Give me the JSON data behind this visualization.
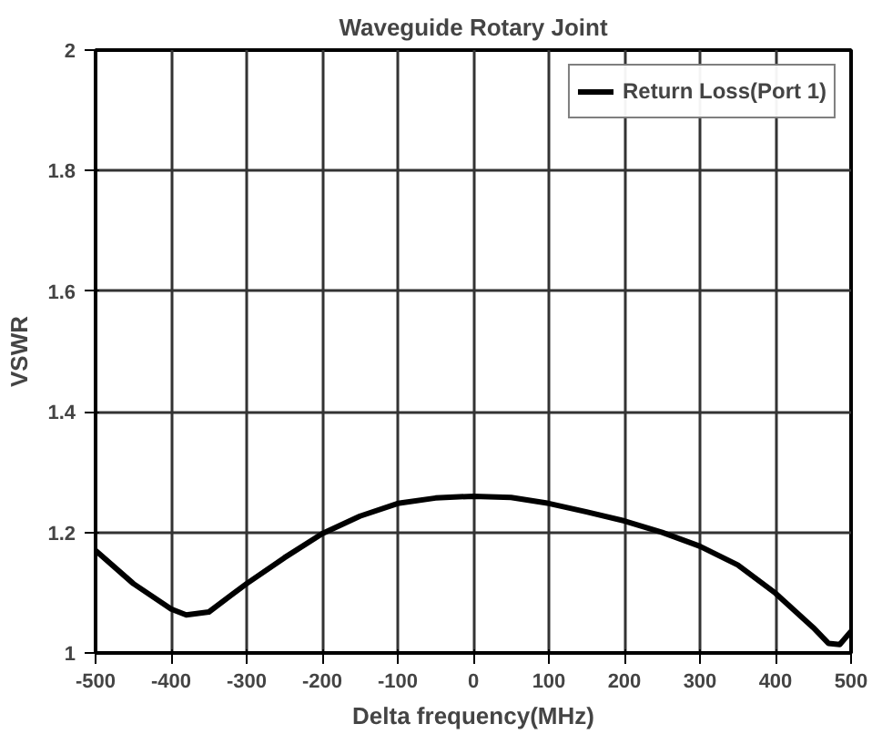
{
  "chart_data": {
    "type": "line",
    "title": "Waveguide Rotary Joint",
    "xlabel": "Delta frequency(MHz)",
    "ylabel": "VSWR",
    "xlim": [
      -500,
      500
    ],
    "xticks": [
      -500,
      -400,
      -300,
      -200,
      -100,
      0,
      100,
      200,
      300,
      400,
      500
    ],
    "ylim": [
      1,
      2
    ],
    "yticks": [
      1,
      1.2,
      1.4,
      1.6,
      1.8,
      2
    ],
    "grid": true,
    "legend": "top right",
    "line_style": "solid",
    "series": [
      {
        "name": "Return Loss(Port 1)",
        "color": "#000000",
        "x": [
          -500,
          -450,
          -400,
          -380,
          -350,
          -300,
          -250,
          -200,
          -150,
          -100,
          -50,
          0,
          50,
          100,
          150,
          200,
          250,
          300,
          350,
          400,
          450,
          470,
          485,
          500
        ],
        "values": [
          1.17,
          1.115,
          1.073,
          1.063,
          1.068,
          1.115,
          1.158,
          1.198,
          1.227,
          1.248,
          1.257,
          1.26,
          1.258,
          1.248,
          1.234,
          1.219,
          1.2,
          1.177,
          1.146,
          1.099,
          1.042,
          1.016,
          1.014,
          1.036
        ]
      }
    ]
  }
}
